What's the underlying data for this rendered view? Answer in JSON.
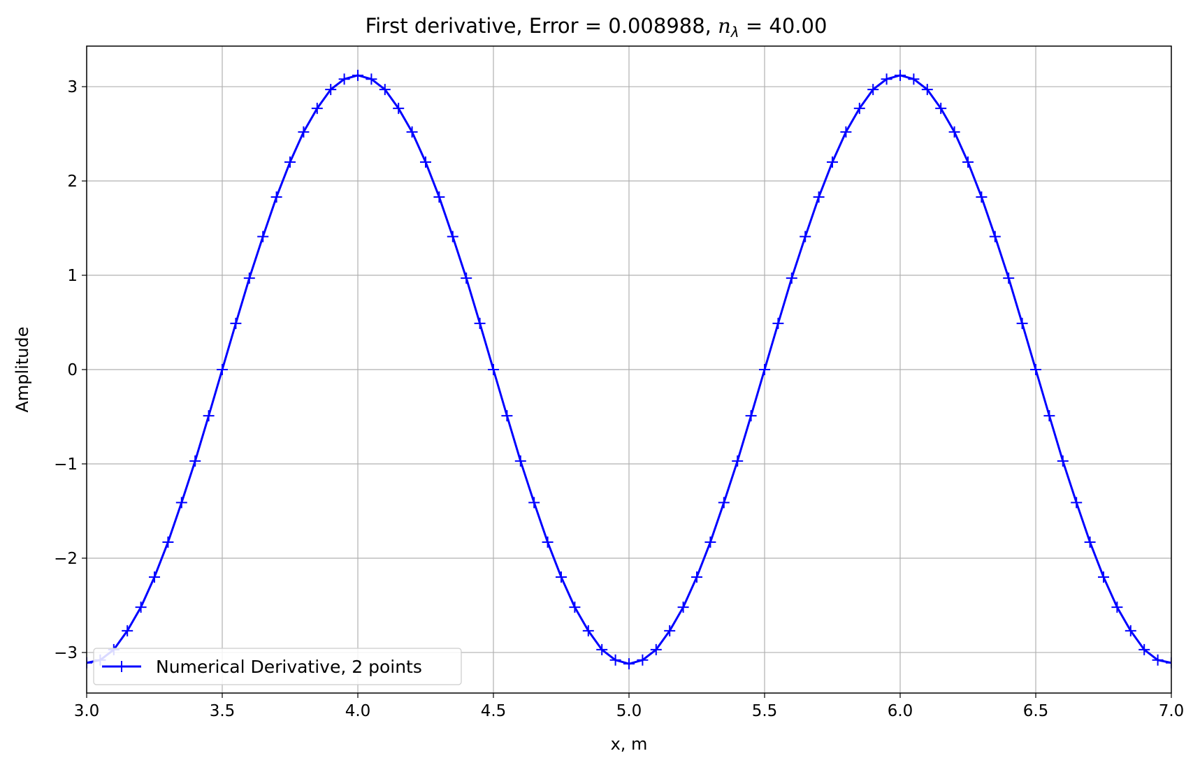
{
  "chart_data": {
    "type": "line",
    "title_prefix": "First derivative, Error = 0.008988, ",
    "title_symbol": "n",
    "title_subscript": "λ",
    "title_suffix": " = 40.00",
    "xlabel": "x, m",
    "ylabel": "Amplitude",
    "xlim": [
      3.0,
      7.0
    ],
    "ylim": [
      -3.43,
      3.43
    ],
    "xticks": [
      {
        "value": 3.0,
        "label": "3.0"
      },
      {
        "value": 3.5,
        "label": "3.5"
      },
      {
        "value": 4.0,
        "label": "4.0"
      },
      {
        "value": 4.5,
        "label": "4.5"
      },
      {
        "value": 5.0,
        "label": "5.0"
      },
      {
        "value": 5.5,
        "label": "5.5"
      },
      {
        "value": 6.0,
        "label": "6.0"
      },
      {
        "value": 6.5,
        "label": "6.5"
      },
      {
        "value": 7.0,
        "label": "7.0"
      }
    ],
    "yticks": [
      {
        "value": -3,
        "label": "−3"
      },
      {
        "value": -2,
        "label": "−2"
      },
      {
        "value": -1,
        "label": "−1"
      },
      {
        "value": 0,
        "label": "0"
      },
      {
        "value": 1,
        "label": "1"
      },
      {
        "value": 2,
        "label": "2"
      },
      {
        "value": 3,
        "label": "3"
      }
    ],
    "grid": true,
    "legend_position": "lower-left",
    "series": [
      {
        "name": "Numerical Derivative, 2 points",
        "color": "#0000ff",
        "marker": "plus",
        "x": [
          3.0,
          3.05,
          3.1,
          3.15,
          3.2,
          3.25,
          3.3,
          3.35,
          3.4,
          3.45,
          3.5,
          3.55,
          3.6,
          3.65,
          3.7,
          3.75,
          3.8,
          3.85,
          3.9,
          3.95,
          4.0,
          4.05,
          4.1,
          4.15,
          4.2,
          4.25,
          4.3,
          4.35,
          4.4,
          4.45,
          4.5,
          4.55,
          4.6,
          4.65,
          4.7,
          4.75,
          4.8,
          4.85,
          4.9,
          4.95,
          5.0,
          5.05,
          5.1,
          5.15,
          5.2,
          5.25,
          5.3,
          5.35,
          5.4,
          5.45,
          5.5,
          5.55,
          5.6,
          5.65,
          5.7,
          5.75,
          5.8,
          5.85,
          5.9,
          5.95,
          6.0,
          6.05,
          6.1,
          6.15,
          6.2,
          6.25,
          6.3,
          6.35,
          6.4,
          6.45,
          6.5,
          6.55,
          6.6,
          6.65,
          6.7,
          6.75,
          6.8,
          6.85,
          6.9,
          6.95,
          7.0
        ],
        "y": [
          -3.11,
          -3.08,
          -2.97,
          -2.77,
          -2.52,
          -2.2,
          -1.83,
          -1.41,
          -0.97,
          -0.49,
          0.0,
          0.49,
          0.97,
          1.41,
          1.83,
          2.2,
          2.52,
          2.77,
          2.97,
          3.08,
          3.12,
          3.08,
          2.97,
          2.77,
          2.52,
          2.2,
          1.83,
          1.41,
          0.97,
          0.49,
          0.0,
          -0.49,
          -0.97,
          -1.41,
          -1.83,
          -2.2,
          -2.52,
          -2.77,
          -2.97,
          -3.08,
          -3.12,
          -3.08,
          -2.97,
          -2.77,
          -2.52,
          -2.2,
          -1.83,
          -1.41,
          -0.97,
          -0.49,
          0.0,
          0.49,
          0.97,
          1.41,
          1.83,
          2.2,
          2.52,
          2.77,
          2.97,
          3.08,
          3.12,
          3.08,
          2.97,
          2.77,
          2.52,
          2.2,
          1.83,
          1.41,
          0.97,
          0.49,
          0.0,
          -0.49,
          -0.97,
          -1.41,
          -1.83,
          -2.2,
          -2.52,
          -2.77,
          -2.97,
          -3.08,
          -3.11
        ]
      }
    ]
  }
}
